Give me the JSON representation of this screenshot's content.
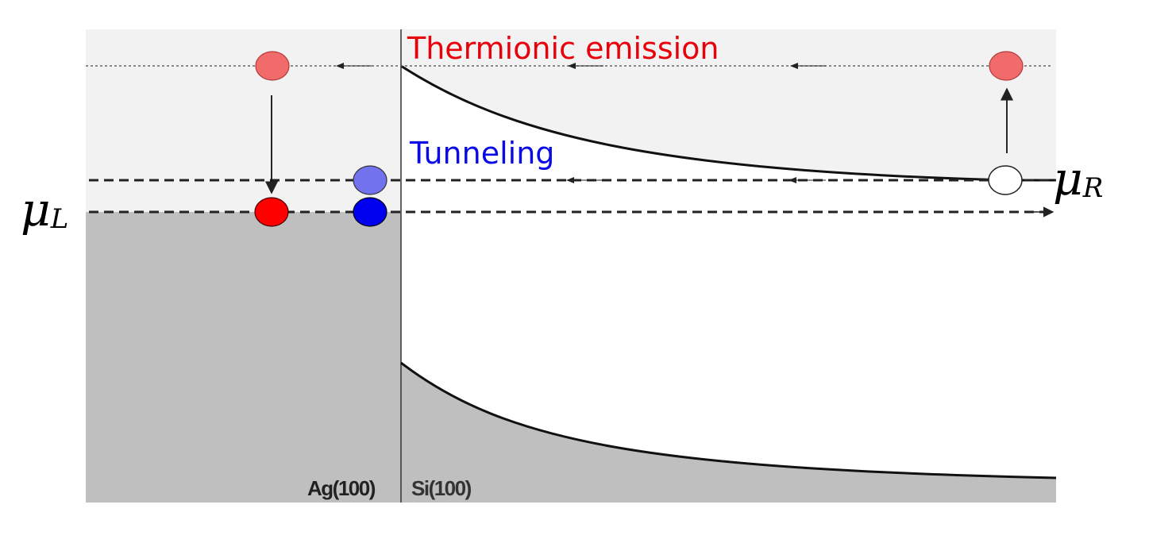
{
  "labels": {
    "thermionic": "Thermionic emission",
    "tunneling": "Tunneling",
    "mu_left_symbol": "μ",
    "mu_left_sub": "L",
    "mu_right_symbol": "μ",
    "mu_right_sub": "R",
    "metal": "Ag(100)",
    "semiconductor": "Si(100)"
  },
  "colors": {
    "thermionic": "#e8000b",
    "tunneling": "#0a0ae6",
    "metal_fill": "#bfbfbf",
    "barrier_fill": "#f2f2f2",
    "electron_red": "#ff0000",
    "electron_red_light": "#f26b6b",
    "electron_blue": "#0000ee",
    "electron_blue_light": "#7272ee",
    "hole": "#ffffff"
  },
  "electrons": [
    {
      "name": "thermionic-electron-left",
      "color": "electron_red_light"
    },
    {
      "name": "thermionic-electron-right",
      "color": "electron_red_light"
    },
    {
      "name": "electron-mu-left-red",
      "color": "electron_red"
    },
    {
      "name": "tunneling-electron-upper",
      "color": "electron_blue_light"
    },
    {
      "name": "tunneling-electron-lower",
      "color": "electron_blue"
    },
    {
      "name": "hole-mu-right",
      "color": "hole"
    }
  ]
}
